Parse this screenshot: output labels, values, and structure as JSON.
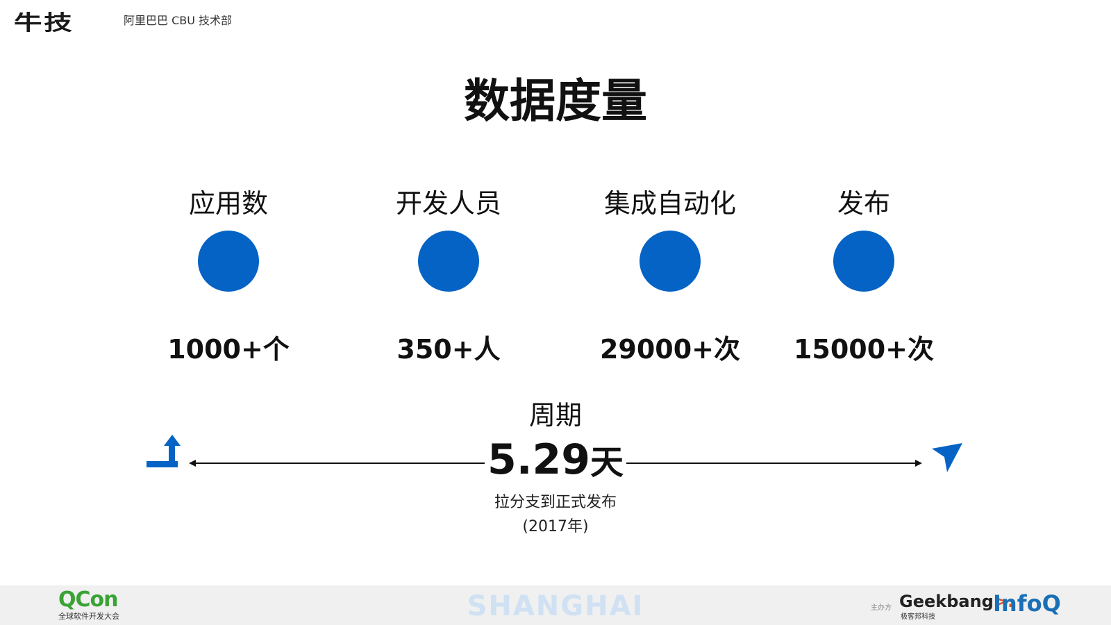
{
  "header": {
    "logo": "牛技",
    "org": "阿里巴巴 CBU 技术部"
  },
  "title": "数据度量",
  "metrics": [
    {
      "label": "应用数",
      "value": "1000+个"
    },
    {
      "label": "开发人员",
      "value": "350+人"
    },
    {
      "label": "集成自动化",
      "value": "29000+次"
    },
    {
      "label": "发布",
      "value": "15000+次"
    }
  ],
  "cycle": {
    "label": "周期",
    "value": "5.29",
    "unit": "天",
    "desc": "拉分支到正式发布",
    "year": "(2017年)"
  },
  "footer": {
    "qcon": "QCon",
    "qcon_sub": "全球软件开发大会",
    "city": "SHANGHAI",
    "host": "主办方",
    "geek": "Geekbang",
    "geek_arrow": ">.",
    "geek_sub": "极客邦科技",
    "infoq": "InfoQ"
  },
  "colors": {
    "accent": "#0463c4",
    "footer_bg": "#f0f0f0"
  },
  "icons": {
    "start": "corner-up-arrow-icon",
    "end": "paper-plane-icon"
  }
}
